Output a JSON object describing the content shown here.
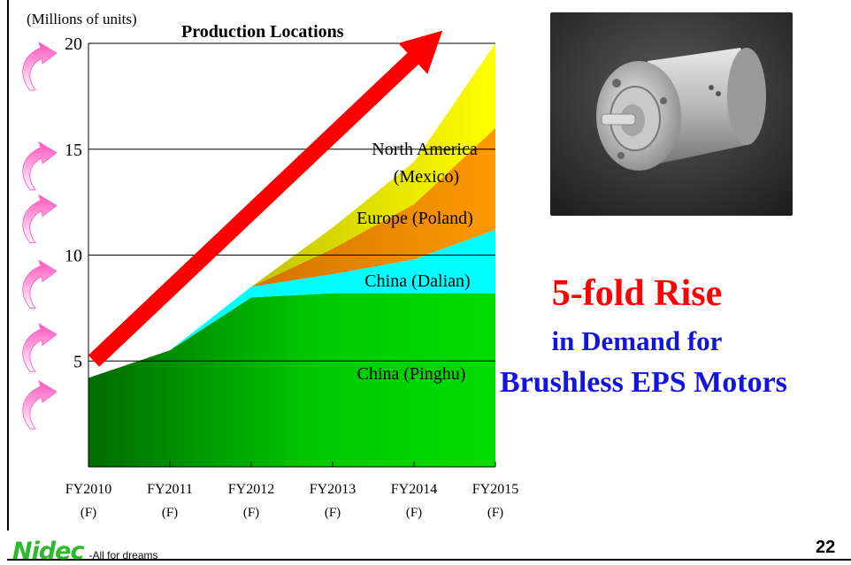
{
  "unit_label": "(Millions of units)",
  "chart_title": "Production Locations",
  "headline": {
    "line1": "5-fold Rise",
    "line2": "in Demand for",
    "line3": "Brushless EPS Motors"
  },
  "footer": {
    "logo": "Nidec",
    "tagline": "-All for dreams",
    "page_number": "22"
  },
  "colors": {
    "pinghu": "#00dd00",
    "pinghu_dark": "#006a00",
    "dalian": "#00ffff",
    "poland": "#ff9900",
    "mexico": "#ffff00",
    "trend_arrow": "#ff0000",
    "growth_arrows": "#ff66cc",
    "headline_red": "#ff0000",
    "headline_blue": "#1414e0"
  },
  "chart_data": {
    "type": "area",
    "stacked": true,
    "categories": [
      "FY2010\n(F)",
      "FY2011\n(F)",
      "FY2012\n(F)",
      "FY2013\n(F)",
      "FY2014\n(F)",
      "FY2015\n(F)"
    ],
    "x": [
      0,
      1,
      2,
      3,
      4,
      5
    ],
    "ylim": [
      0,
      20
    ],
    "yticks": [
      5,
      10,
      15,
      20
    ],
    "grid": true,
    "series": [
      {
        "name": "China (Pinghu)",
        "values": [
          4.2,
          5.5,
          8.0,
          8.2,
          8.2,
          8.2
        ],
        "label": "China (Pinghu)"
      },
      {
        "name": "China (Dalian)",
        "values": [
          0,
          0,
          0.5,
          0.9,
          1.6,
          3.0
        ],
        "label": "China (Dalian)"
      },
      {
        "name": "Europe (Poland)",
        "values": [
          0,
          0,
          0,
          1.2,
          2.6,
          4.8
        ],
        "label": "Europe (Poland)"
      },
      {
        "name": "North America (Mexico)",
        "values": [
          0,
          0,
          0,
          1.0,
          2.0,
          4.0
        ],
        "label_line1": "North America",
        "label_line2": "(Mexico)"
      }
    ],
    "trend_arrow": {
      "from": [
        0,
        5
      ],
      "to": [
        4.35,
        20.6
      ]
    }
  }
}
